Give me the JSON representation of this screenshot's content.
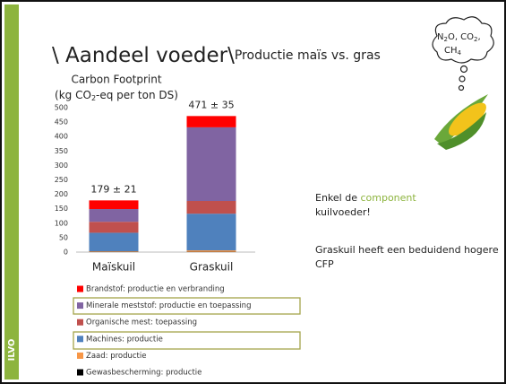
{
  "title": "\\ Aandeel voeder\\",
  "subtitle": "Productie maïs vs. gras",
  "bubble": [
    "N",
    "2",
    "O, CO",
    "2",
    ",",
    "CH",
    "4"
  ],
  "notes": {
    "line1": [
      "Enkel de ",
      "component",
      " kuilvoeder!"
    ],
    "line2": "Graskuil heeft een beduidend hogere CFP"
  },
  "logo": "ILVO",
  "chart_data": {
    "type": "stacked_bar",
    "title": "Carbon Footprint",
    "ylabel": [
      "(kg CO",
      "2",
      "-eq per ton DS)"
    ],
    "categories": [
      "Maïskuil",
      "Graskuil"
    ],
    "annotations": [
      "179 ± 21",
      "471 ± 35"
    ],
    "series": [
      {
        "name": "Gewasbescherming: productie",
        "color": "#000000",
        "values": [
          1,
          1
        ]
      },
      {
        "name": "Zaad: productie",
        "color": "#f79646",
        "values": [
          2,
          5
        ]
      },
      {
        "name": "Machines: productie",
        "color": "#4f81bd",
        "values": [
          64,
          127
        ]
      },
      {
        "name": "Organische mest: toepassing",
        "color": "#c0504d",
        "values": [
          38,
          44
        ]
      },
      {
        "name": "Minerale meststof: productie en toepassing",
        "color": "#8064a2",
        "values": [
          44,
          255
        ]
      },
      {
        "name": "Brandstof: productie en verbranding",
        "color": "#ff0000",
        "values": [
          30,
          39
        ]
      }
    ],
    "ylim": [
      0,
      500
    ],
    "yticks": [
      0,
      50,
      100,
      150,
      200,
      250,
      300,
      350,
      400,
      450,
      500
    ],
    "grid": false,
    "legend": "bottom-left"
  }
}
